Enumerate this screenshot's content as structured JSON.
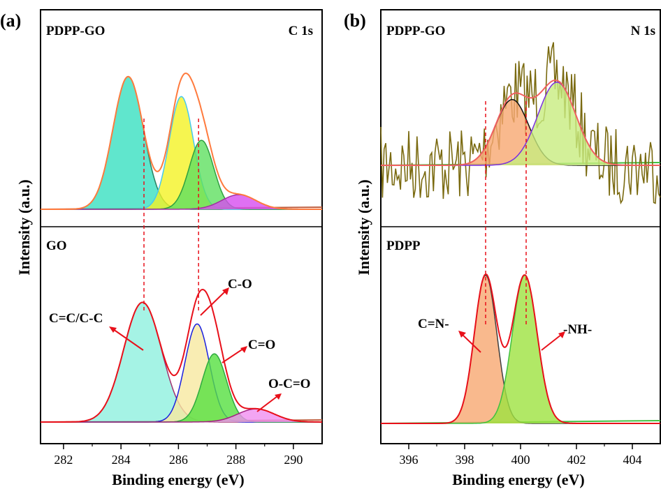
{
  "chart_data": [
    {
      "type": "area",
      "panel_label": "(a)",
      "xlabel": "Binding energy (eV)",
      "ylabel": "Intensity (a.u.)",
      "xlim": [
        281.2,
        291.0
      ],
      "xticks": [
        282,
        284,
        286,
        288,
        290
      ],
      "grid": false,
      "subplots": [
        {
          "name": "PDPP-GO",
          "corner_label": "C 1s",
          "envelope_color": "#ff7a3d",
          "peaks": [
            {
              "center": 284.25,
              "height": 100,
              "fwhm": 1.25,
              "color": "#38e0c0",
              "line": "#2a7f5f"
            },
            {
              "center": 286.1,
              "height": 85,
              "fwhm": 1.0,
              "color": "#f4f224",
              "line": "#45c8f0"
            },
            {
              "center": 286.8,
              "height": 52,
              "fwhm": 1.0,
              "color": "#5fe060",
              "line": "#2f9f3f"
            },
            {
              "center": 288.1,
              "height": 11,
              "fwhm": 1.4,
              "color": "#d74cf0",
              "line": "#a0309f"
            }
          ],
          "dashed_positions": [
            284.8,
            286.7
          ]
        },
        {
          "name": "GO",
          "envelope_color": "#e8101a",
          "peaks": [
            {
              "center": 284.75,
              "height": 100,
              "fwhm": 1.55,
              "label": "C=C/C-C",
              "color": "#8ef0df",
              "line": "#a0306f"
            },
            {
              "center": 286.65,
              "height": 82,
              "fwhm": 1.0,
              "label": "C-O",
              "color": "#f7e9a0",
              "line": "#1a20e0"
            },
            {
              "center": 287.25,
              "height": 57,
              "fwhm": 1.0,
              "label": "C=O",
              "color": "#55e040",
              "line": "#2faa40"
            },
            {
              "center": 288.7,
              "height": 11,
              "fwhm": 1.5,
              "label": "O-C=O",
              "color": "#f08ef0",
              "line": "#a0207f"
            }
          ],
          "dashed_positions": [
            284.8,
            286.7
          ]
        }
      ]
    },
    {
      "type": "area",
      "panel_label": "(b)",
      "xlabel": "Binding energy (eV)",
      "ylabel": "Intensity (a.u.)",
      "xlim": [
        395.0,
        405.0
      ],
      "xticks": [
        396,
        398,
        400,
        402,
        404
      ],
      "grid": false,
      "subplots": [
        {
          "name": "PDPP-GO",
          "corner_label": "N 1s",
          "envelope_color": "#f06060",
          "raw_color": "#7a6a10",
          "peaks": [
            {
              "center": 399.7,
              "height": 38,
              "fwhm": 1.4,
              "color": "#f7a870",
              "line": "#101010"
            },
            {
              "center": 401.3,
              "height": 48,
              "fwhm": 1.6,
              "color": "#c8ec80",
              "line": "#7a2fe0"
            }
          ],
          "dashed_positions": [
            398.75,
            400.2
          ]
        },
        {
          "name": "PDPP",
          "envelope_color": "#e8101a",
          "peaks": [
            {
              "center": 398.75,
              "height": 100,
              "fwhm": 0.95,
              "label": "C=N-",
              "color": "#f7a870",
              "line": "#404040"
            },
            {
              "center": 400.15,
              "height": 100,
              "fwhm": 1.05,
              "label": "-NH-",
              "color": "#9ee240",
              "line": "#40c040"
            }
          ],
          "dashed_positions": [
            398.75,
            400.2
          ]
        }
      ]
    }
  ]
}
